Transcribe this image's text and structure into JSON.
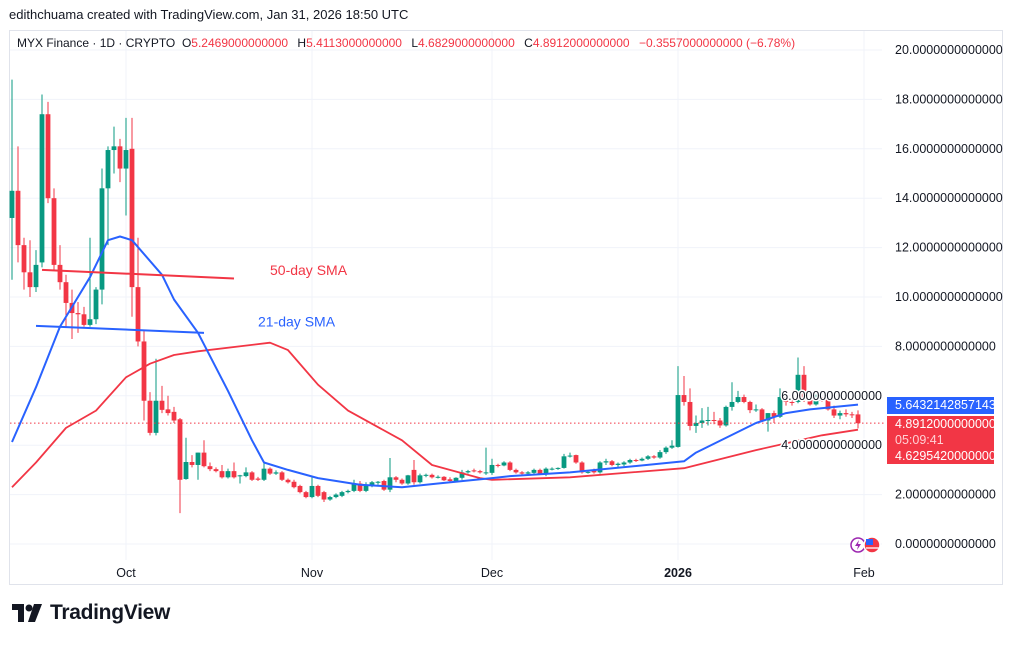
{
  "credit": "edithchuama created with TradingView.com, Jan 31, 2026 18:50 UTC",
  "legend": {
    "symbol": "MYX Finance · 1D · CRYPTO",
    "o_label": "O",
    "o_value": "5.2469000000000",
    "h_label": "H",
    "h_value": "5.4113000000000",
    "l_label": "L",
    "l_value": "4.6829000000000",
    "c_label": "C",
    "c_value": "4.8912000000000",
    "change": "−0.3557000000000 (−6.78%)"
  },
  "badges": {
    "sma21_value": "5.6432142857143",
    "last_price": "4.8912000000000",
    "countdown": "05:09:41",
    "sma50_value": "4.6295420000000"
  },
  "logo": {
    "text": "TradingView"
  },
  "colors": {
    "up": "#089981",
    "down": "#f23645",
    "sma21": "#2962ff",
    "sma50": "#f23645",
    "grid": "#f0f3fa"
  },
  "icons": [
    "lightning-event-icon",
    "us-flag-economic-event-icon"
  ],
  "chart_data": {
    "type": "candlestick",
    "ylim": [
      0,
      20
    ],
    "ytick_step": 2,
    "ytick_labels": [
      "0.0000000000000",
      "2.0000000000000",
      "4.0000000000000",
      "6.0000000000000",
      "8.0000000000000",
      "10.0000000000000",
      "12.0000000000000",
      "14.0000000000000",
      "16.0000000000000",
      "18.0000000000000",
      "20.0000000000000"
    ],
    "xticks": [
      {
        "date": "2025-10-01",
        "label": "Oct",
        "bold": false
      },
      {
        "date": "2025-11-01",
        "label": "Nov",
        "bold": false
      },
      {
        "date": "2025-12-01",
        "label": "Dec",
        "bold": false
      },
      {
        "date": "2026-01-01",
        "label": "2026",
        "bold": true
      },
      {
        "date": "2026-02-01",
        "label": "Feb",
        "bold": false
      }
    ],
    "grid": true,
    "last_price_line": 4.8912,
    "candles": [
      [
        "2025-09-12",
        13.2,
        18.8,
        10.7,
        14.3
      ],
      [
        "2025-09-13",
        14.3,
        16.1,
        11.4,
        12.1
      ],
      [
        "2025-09-14",
        12.1,
        12.4,
        10.3,
        11.0
      ],
      [
        "2025-09-15",
        11.0,
        12.3,
        10.0,
        10.4
      ],
      [
        "2025-09-16",
        10.4,
        11.9,
        10.2,
        11.3
      ],
      [
        "2025-09-17",
        11.4,
        18.2,
        11.2,
        17.4
      ],
      [
        "2025-09-18",
        17.4,
        17.9,
        13.8,
        14.0
      ],
      [
        "2025-09-19",
        14.0,
        14.4,
        11.1,
        11.3
      ],
      [
        "2025-09-20",
        11.3,
        12.1,
        10.3,
        10.6
      ],
      [
        "2025-09-21",
        10.6,
        10.9,
        8.8,
        9.76
      ],
      [
        "2025-09-22",
        9.76,
        10.3,
        8.3,
        9.35
      ],
      [
        "2025-09-23",
        9.35,
        9.8,
        8.55,
        9.3
      ],
      [
        "2025-09-24",
        9.3,
        9.6,
        8.8,
        8.87
      ],
      [
        "2025-09-25",
        8.87,
        12.4,
        8.8,
        9.1
      ],
      [
        "2025-09-26",
        9.1,
        10.4,
        8.9,
        10.3
      ],
      [
        "2025-09-27",
        10.3,
        15.2,
        9.7,
        14.4
      ],
      [
        "2025-09-28",
        14.4,
        16.1,
        12.1,
        15.95
      ],
      [
        "2025-09-29",
        15.95,
        16.9,
        15.0,
        16.1
      ],
      [
        "2025-09-30",
        16.1,
        16.4,
        14.65,
        15.2
      ],
      [
        "2025-10-01",
        15.2,
        17.25,
        13.3,
        15.95
      ],
      [
        "2025-10-02",
        16.0,
        17.25,
        9.2,
        10.4
      ],
      [
        "2025-10-03",
        10.4,
        12.4,
        8.0,
        8.2
      ],
      [
        "2025-10-04",
        8.2,
        8.65,
        5.0,
        5.8
      ],
      [
        "2025-10-05",
        5.8,
        6.15,
        4.4,
        4.5
      ],
      [
        "2025-10-06",
        4.5,
        7.5,
        4.4,
        5.8
      ],
      [
        "2025-10-07",
        5.8,
        6.4,
        5.3,
        5.43
      ],
      [
        "2025-10-08",
        5.45,
        6.0,
        5.2,
        5.3
      ],
      [
        "2025-10-09",
        5.35,
        5.55,
        4.9,
        5.0
      ],
      [
        "2025-10-10",
        5.05,
        5.1,
        1.25,
        2.6
      ],
      [
        "2025-10-11",
        2.63,
        4.3,
        2.6,
        3.32
      ],
      [
        "2025-10-12",
        3.32,
        3.6,
        3.1,
        3.2
      ],
      [
        "2025-10-13",
        3.2,
        3.7,
        2.6,
        3.7
      ],
      [
        "2025-10-14",
        3.7,
        4.2,
        3.1,
        3.15
      ],
      [
        "2025-10-15",
        3.15,
        3.3,
        2.95,
        3.03
      ],
      [
        "2025-10-16",
        3.03,
        3.1,
        2.9,
        2.95
      ],
      [
        "2025-10-17",
        2.95,
        3.2,
        2.65,
        2.7
      ],
      [
        "2025-10-18",
        2.7,
        3.05,
        2.65,
        2.95
      ],
      [
        "2025-10-19",
        2.95,
        3.3,
        2.65,
        2.7
      ],
      [
        "2025-10-20",
        2.75,
        2.8,
        2.45,
        2.78
      ],
      [
        "2025-10-21",
        2.75,
        3.1,
        2.7,
        2.9
      ],
      [
        "2025-10-22",
        2.9,
        2.95,
        2.55,
        2.6
      ],
      [
        "2025-10-23",
        2.65,
        2.72,
        2.55,
        2.6
      ],
      [
        "2025-10-24",
        2.6,
        3.3,
        2.55,
        3.05
      ],
      [
        "2025-10-25",
        3.05,
        3.1,
        2.8,
        2.85
      ],
      [
        "2025-10-26",
        2.85,
        2.98,
        2.8,
        2.9
      ],
      [
        "2025-10-27",
        2.9,
        2.95,
        2.55,
        2.6
      ],
      [
        "2025-10-28",
        2.6,
        2.65,
        2.45,
        2.5
      ],
      [
        "2025-10-29",
        2.52,
        2.6,
        2.25,
        2.3
      ],
      [
        "2025-10-30",
        2.35,
        2.4,
        2.05,
        2.1
      ],
      [
        "2025-10-31",
        2.1,
        2.15,
        1.85,
        1.9
      ],
      [
        "2025-11-01",
        1.9,
        2.7,
        1.85,
        2.35
      ],
      [
        "2025-11-02",
        2.35,
        2.4,
        1.9,
        1.95
      ],
      [
        "2025-11-03",
        2.1,
        2.15,
        1.7,
        1.8
      ],
      [
        "2025-11-04",
        1.8,
        1.95,
        1.75,
        1.9
      ],
      [
        "2025-11-05",
        1.9,
        2.05,
        1.85,
        2.0
      ],
      [
        "2025-11-06",
        1.95,
        2.15,
        1.9,
        2.1
      ],
      [
        "2025-11-07",
        2.1,
        2.2,
        2.05,
        2.15
      ],
      [
        "2025-11-08",
        2.15,
        2.6,
        2.1,
        2.45
      ],
      [
        "2025-11-09",
        2.45,
        2.55,
        2.1,
        2.15
      ],
      [
        "2025-11-10",
        2.15,
        2.5,
        2.1,
        2.4
      ],
      [
        "2025-11-11",
        2.4,
        2.55,
        2.3,
        2.5
      ],
      [
        "2025-11-12",
        2.5,
        2.55,
        2.4,
        2.52
      ],
      [
        "2025-11-13",
        2.55,
        2.6,
        2.15,
        2.2
      ],
      [
        "2025-11-14",
        2.2,
        3.48,
        2.1,
        2.7
      ],
      [
        "2025-11-15",
        2.7,
        2.75,
        2.5,
        2.6
      ],
      [
        "2025-11-16",
        2.6,
        2.65,
        2.4,
        2.45
      ],
      [
        "2025-11-17",
        2.45,
        2.8,
        2.4,
        2.78
      ],
      [
        "2025-11-18",
        3.0,
        3.4,
        2.4,
        2.5
      ],
      [
        "2025-11-19",
        2.5,
        2.85,
        2.45,
        2.78
      ],
      [
        "2025-11-20",
        2.78,
        2.85,
        2.7,
        2.8
      ],
      [
        "2025-11-21",
        2.8,
        2.85,
        2.65,
        2.7
      ],
      [
        "2025-11-22",
        2.7,
        2.78,
        2.65,
        2.72
      ],
      [
        "2025-11-23",
        2.72,
        2.75,
        2.55,
        2.58
      ],
      [
        "2025-11-24",
        2.62,
        2.7,
        2.5,
        2.55
      ],
      [
        "2025-11-25",
        2.55,
        2.7,
        2.5,
        2.68
      ],
      [
        "2025-11-26",
        2.68,
        3.0,
        2.6,
        2.9
      ],
      [
        "2025-11-27",
        2.9,
        3.0,
        2.85,
        2.95
      ],
      [
        "2025-11-28",
        2.98,
        3.05,
        2.9,
        2.95
      ],
      [
        "2025-11-29",
        2.95,
        3.0,
        2.85,
        2.9
      ],
      [
        "2025-11-30",
        2.88,
        3.9,
        2.8,
        2.9
      ],
      [
        "2025-12-01",
        2.88,
        3.45,
        2.8,
        3.2
      ],
      [
        "2025-12-02",
        3.2,
        3.25,
        3.1,
        3.18
      ],
      [
        "2025-12-03",
        3.18,
        3.35,
        3.15,
        3.3
      ],
      [
        "2025-12-04",
        3.3,
        3.35,
        2.95,
        3.0
      ],
      [
        "2025-12-05",
        3.0,
        3.05,
        2.85,
        2.9
      ],
      [
        "2025-12-06",
        2.9,
        2.95,
        2.8,
        2.85
      ],
      [
        "2025-12-07",
        2.85,
        2.95,
        2.8,
        2.9
      ],
      [
        "2025-12-08",
        2.88,
        3.05,
        2.8,
        3.0
      ],
      [
        "2025-12-09",
        3.0,
        3.05,
        2.8,
        2.85
      ],
      [
        "2025-12-10",
        2.85,
        3.1,
        2.75,
        3.05
      ],
      [
        "2025-12-11",
        3.05,
        3.1,
        2.98,
        3.05
      ],
      [
        "2025-12-12",
        3.05,
        3.1,
        3.0,
        3.08
      ],
      [
        "2025-12-13",
        3.08,
        3.65,
        3.05,
        3.55
      ],
      [
        "2025-12-14",
        3.55,
        3.7,
        3.5,
        3.58
      ],
      [
        "2025-12-15",
        3.6,
        3.62,
        3.25,
        3.3
      ],
      [
        "2025-12-16",
        3.3,
        3.35,
        2.85,
        2.9
      ],
      [
        "2025-12-17",
        2.9,
        2.98,
        2.85,
        2.92
      ],
      [
        "2025-12-18",
        3.0,
        3.05,
        2.85,
        2.9
      ],
      [
        "2025-12-19",
        2.9,
        3.35,
        2.85,
        3.3
      ],
      [
        "2025-12-20",
        3.3,
        3.45,
        3.2,
        3.35
      ],
      [
        "2025-12-21",
        3.35,
        3.4,
        3.15,
        3.2
      ],
      [
        "2025-12-22",
        3.2,
        3.3,
        3.1,
        3.25
      ],
      [
        "2025-12-23",
        3.22,
        3.35,
        3.15,
        3.3
      ],
      [
        "2025-12-24",
        3.3,
        3.45,
        3.25,
        3.4
      ],
      [
        "2025-12-25",
        3.4,
        3.45,
        3.32,
        3.38
      ],
      [
        "2025-12-26",
        3.38,
        3.5,
        3.35,
        3.45
      ],
      [
        "2025-12-27",
        3.45,
        3.6,
        3.4,
        3.55
      ],
      [
        "2025-12-28",
        3.55,
        3.6,
        3.45,
        3.5
      ],
      [
        "2025-12-29",
        3.5,
        3.8,
        3.45,
        3.72
      ],
      [
        "2025-12-30",
        3.72,
        3.95,
        3.65,
        3.9
      ],
      [
        "2025-12-31",
        3.9,
        4.2,
        3.85,
        3.98
      ],
      [
        "2026-01-01",
        3.93,
        7.2,
        3.9,
        6.03
      ],
      [
        "2026-01-02",
        6.03,
        6.8,
        5.6,
        5.75
      ],
      [
        "2026-01-03",
        5.75,
        6.3,
        4.6,
        4.78
      ],
      [
        "2026-01-04",
        4.78,
        5.2,
        4.5,
        4.9
      ],
      [
        "2026-01-05",
        4.9,
        5.5,
        4.7,
        5.0
      ],
      [
        "2026-01-06",
        5.0,
        5.55,
        4.8,
        5.02
      ],
      [
        "2026-01-07",
        5.02,
        5.35,
        4.85,
        5.0
      ],
      [
        "2026-01-08",
        5.0,
        5.1,
        4.7,
        4.8
      ],
      [
        "2026-01-09",
        4.8,
        5.6,
        4.75,
        5.55
      ],
      [
        "2026-01-10",
        5.55,
        6.55,
        5.4,
        5.75
      ],
      [
        "2026-01-11",
        5.75,
        6.2,
        5.7,
        5.95
      ],
      [
        "2026-01-12",
        5.95,
        6.05,
        5.7,
        5.75
      ],
      [
        "2026-01-13",
        5.75,
        5.8,
        5.3,
        5.42
      ],
      [
        "2026-01-14",
        5.42,
        5.65,
        5.35,
        5.45
      ],
      [
        "2026-01-15",
        5.45,
        5.5,
        4.95,
        5.0
      ],
      [
        "2026-01-16",
        5.0,
        5.3,
        4.55,
        5.3
      ],
      [
        "2026-01-17",
        5.3,
        5.4,
        4.9,
        5.15
      ],
      [
        "2026-01-18",
        5.15,
        6.3,
        5.1,
        5.95
      ],
      [
        "2026-01-19",
        5.95,
        6.1,
        5.6,
        5.75
      ],
      [
        "2026-01-20",
        5.75,
        5.85,
        5.6,
        5.72
      ],
      [
        "2026-01-21",
        5.75,
        7.55,
        5.7,
        6.85
      ],
      [
        "2026-01-22",
        6.85,
        7.2,
        5.75,
        5.83
      ],
      [
        "2026-01-23",
        5.83,
        6.05,
        5.6,
        5.65
      ],
      [
        "2026-01-24",
        5.65,
        6.05,
        5.6,
        5.95
      ],
      [
        "2026-01-25",
        5.95,
        6.05,
        5.75,
        5.8
      ],
      [
        "2026-01-26",
        5.85,
        5.95,
        5.4,
        5.45
      ],
      [
        "2026-01-27",
        5.45,
        5.6,
        5.1,
        5.2
      ],
      [
        "2026-01-28",
        5.2,
        5.4,
        5.05,
        5.3
      ],
      [
        "2026-01-29",
        5.3,
        5.45,
        5.15,
        5.25
      ],
      [
        "2026-01-30",
        5.25,
        5.35,
        5.1,
        5.2469
      ],
      [
        "2026-01-31",
        5.2469,
        5.4113,
        4.6829,
        4.8912
      ]
    ],
    "sma21": [
      [
        "2025-09-12",
        4.13
      ],
      [
        "2025-09-16",
        6.35
      ],
      [
        "2025-09-20",
        8.8
      ],
      [
        "2025-09-25",
        10.8
      ],
      [
        "2025-09-28",
        12.3
      ],
      [
        "2025-09-30",
        12.45
      ],
      [
        "2025-10-02",
        12.3
      ],
      [
        "2025-10-07",
        10.9
      ],
      [
        "2025-10-09",
        9.9
      ],
      [
        "2025-10-13",
        8.55
      ],
      [
        "2025-10-18",
        6.2
      ],
      [
        "2025-10-22",
        4.2
      ],
      [
        "2025-10-24",
        3.3
      ],
      [
        "2025-10-28",
        3.0
      ],
      [
        "2025-11-02",
        2.67
      ],
      [
        "2025-11-09",
        2.4
      ],
      [
        "2025-11-16",
        2.3
      ],
      [
        "2025-11-22",
        2.45
      ],
      [
        "2025-12-01",
        2.67
      ],
      [
        "2025-12-04",
        2.75
      ],
      [
        "2025-12-14",
        2.9
      ],
      [
        "2026-01-02",
        3.35
      ],
      [
        "2026-01-04",
        3.7
      ],
      [
        "2026-01-14",
        4.9
      ],
      [
        "2026-01-19",
        5.3
      ],
      [
        "2026-01-23",
        5.45
      ],
      [
        "2026-01-31",
        5.6432
      ]
    ],
    "sma50": [
      [
        "2025-09-12",
        2.3
      ],
      [
        "2025-09-16",
        3.3
      ],
      [
        "2025-09-21",
        4.7
      ],
      [
        "2025-09-26",
        5.4
      ],
      [
        "2025-10-01",
        6.75
      ],
      [
        "2025-10-05",
        7.3
      ],
      [
        "2025-10-09",
        7.65
      ],
      [
        "2025-10-13",
        7.8
      ],
      [
        "2025-10-25",
        8.15
      ],
      [
        "2025-10-28",
        7.85
      ],
      [
        "2025-11-02",
        6.45
      ],
      [
        "2025-11-07",
        5.4
      ],
      [
        "2025-11-16",
        4.2
      ],
      [
        "2025-11-21",
        3.2
      ],
      [
        "2025-11-29",
        2.67
      ],
      [
        "2025-12-01",
        2.6
      ],
      [
        "2025-12-14",
        2.7
      ],
      [
        "2026-01-02",
        3.07
      ],
      [
        "2026-01-14",
        3.8
      ],
      [
        "2026-01-25",
        4.4
      ],
      [
        "2026-01-31",
        4.6295
      ]
    ],
    "trendlines": [
      {
        "color": "#f23645",
        "from": [
          "2025-09-17",
          11.1
        ],
        "to": [
          "2025-10-19",
          10.75
        ]
      },
      {
        "color": "#2962ff",
        "from": [
          "2025-09-16",
          8.83
        ],
        "to": [
          "2025-10-14",
          8.55
        ]
      }
    ],
    "annotations": [
      {
        "text": "50-day SMA",
        "color": "#f23645",
        "date": "2025-10-25",
        "value": 10.9
      },
      {
        "text": "21-day SMA",
        "color": "#2962ff",
        "date": "2025-10-23",
        "value": 8.8
      }
    ]
  }
}
